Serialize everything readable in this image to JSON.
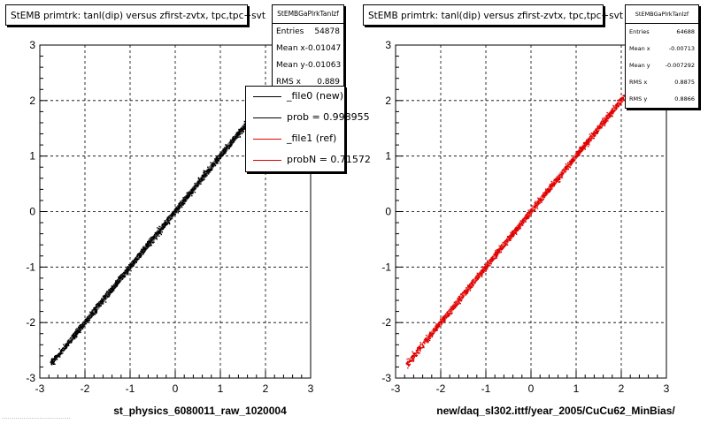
{
  "chart_data": [
    {
      "type": "scatter",
      "title": "StEMB primtrk: tanl(dip) versus zfirst-zvtx, tpc,tpc+svt",
      "xlabel": "st_physics_6080011_raw_1020004",
      "ylabel": "",
      "xlim": [
        -3,
        3
      ],
      "ylim": [
        -3,
        3
      ],
      "x_ticks": [
        "-3",
        "-2",
        "-1",
        "0",
        "1",
        "2",
        "3"
      ],
      "y_ticks": [
        "-3",
        "-2",
        "-1",
        "0",
        "1",
        "2",
        "3"
      ],
      "grid": true,
      "series": [
        {
          "name": "_file0 (new)",
          "color": "#000000",
          "band_points": [
            [
              -2.75,
              -2.75
            ],
            [
              1.7,
              1.7
            ]
          ]
        }
      ],
      "stats": {
        "title": "StEMBGaPlrkTanlzf",
        "rows": [
          {
            "label": "Entries",
            "value": "54878"
          },
          {
            "label": "Mean x",
            "value": "-0.01047"
          },
          {
            "label": "Mean y",
            "value": "-0.01063"
          },
          {
            "label": "RMS x",
            "value": "0.889"
          }
        ]
      },
      "legend": [
        {
          "label": "_file0 (new)",
          "color": "#000000"
        },
        {
          "label": "prob = 0.998955",
          "color": "#000000"
        },
        {
          "label": "_file1 (ref)",
          "color": "#e00000"
        },
        {
          "label": "probN = 0.71572",
          "color": "#e00000"
        }
      ]
    },
    {
      "type": "scatter",
      "title": "StEMB primtrk: tanl(dip) versus zfirst-zvtx, tpc,tpc+svt",
      "xlabel": "new/daq_sl302.ittf/year_2005/CuCu62_MinBias/",
      "ylabel": "",
      "xlim": [
        -3,
        3
      ],
      "ylim": [
        -3,
        3
      ],
      "x_ticks": [
        "-3",
        "-2",
        "-1",
        "0",
        "1",
        "2",
        "3"
      ],
      "y_ticks": [
        "-3",
        "-2",
        "-1",
        "0",
        "1",
        "2",
        "3"
      ],
      "grid": true,
      "series": [
        {
          "name": "_file1 (ref)",
          "color": "#e00000",
          "band_points": [
            [
              -2.75,
              -2.75
            ],
            [
              2.1,
              2.1
            ]
          ]
        }
      ],
      "stats": {
        "title": "StEMBGaPlrkTanlzf",
        "rows": [
          {
            "label": "Entries",
            "value": "64688"
          },
          {
            "label": "Mean x",
            "value": "-0.00713"
          },
          {
            "label": "Mean y",
            "value": "-0.007292"
          },
          {
            "label": "RMS x",
            "value": "0.8875"
          },
          {
            "label": "RMS y",
            "value": "0.8866"
          }
        ]
      }
    }
  ],
  "footer_note": "..................................."
}
